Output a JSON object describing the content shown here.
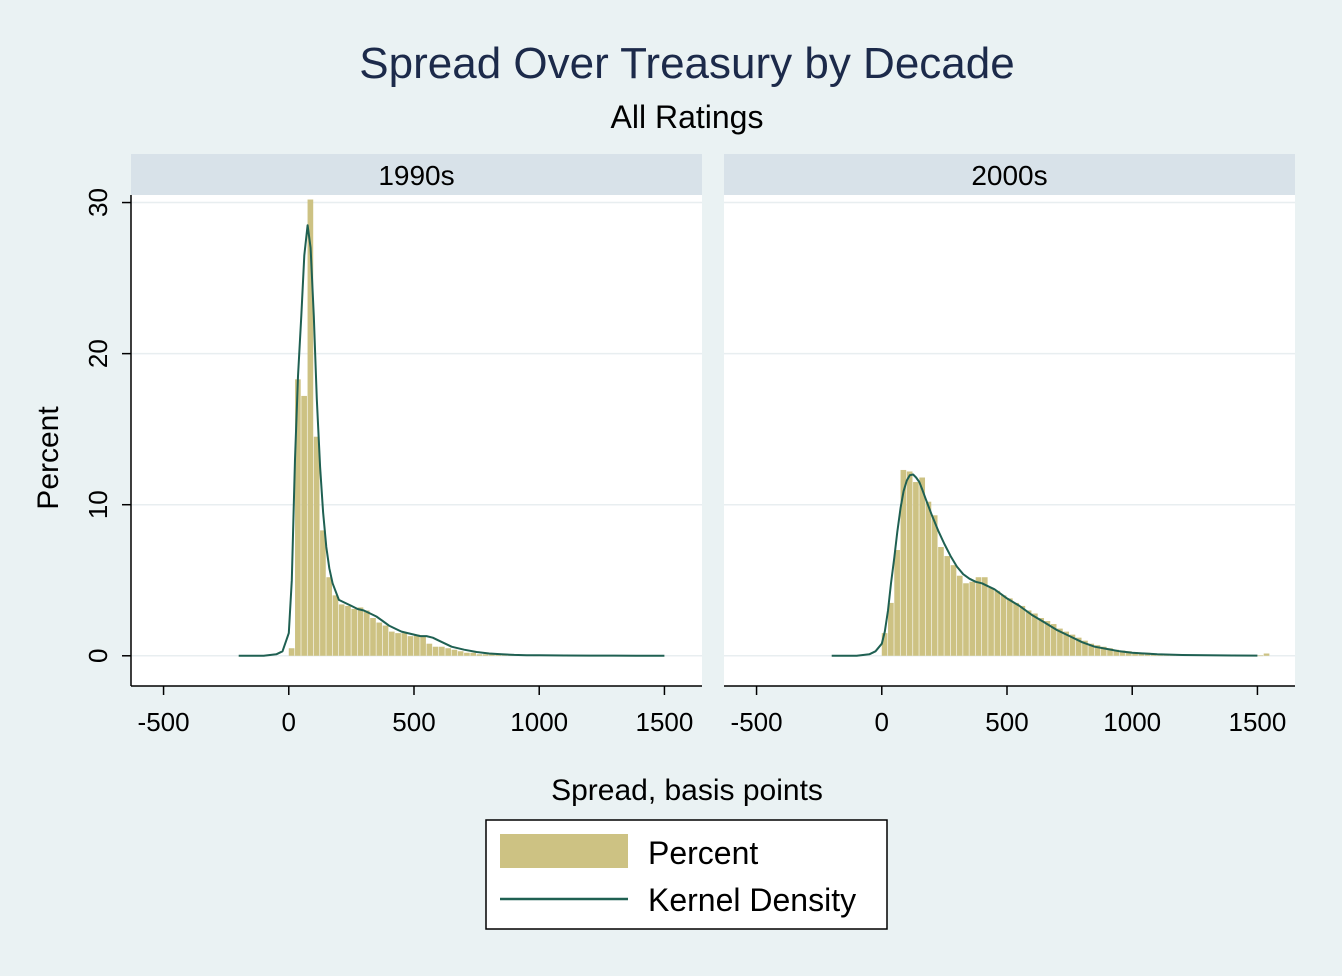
{
  "chart_data": {
    "type": "bar",
    "title": "Spread Over Treasury by Decade",
    "subtitle": "All Ratings",
    "xlabel": "Spread, basis points",
    "ylabel": "Percent",
    "xlim": [
      -630,
      1650
    ],
    "ylim": [
      -2,
      30.5
    ],
    "x_ticks": [
      -500,
      0,
      500,
      1000,
      1500
    ],
    "x_tick_labels": [
      "-500",
      "0",
      "500",
      "1000",
      "1500"
    ],
    "y_ticks": [
      0,
      10,
      20,
      30
    ],
    "y_tick_labels": [
      "0",
      "10",
      "20",
      "30"
    ],
    "grid": true,
    "bin_width": 25,
    "legend": {
      "position": "bottom",
      "entries": [
        "Percent",
        "Kernel Density"
      ]
    },
    "colors": {
      "bar": "#cdc283",
      "line": "#1f6052",
      "strip": "#d8e2e9",
      "plot_bg": "#ffffff",
      "page_bg": "#eaf2f3",
      "grid": "#e8eef0",
      "title": "#1c2a4a"
    },
    "panels": [
      {
        "label": "1990s",
        "histogram": {
          "bin_start": [
            0,
            25,
            50,
            75,
            100,
            125,
            150,
            175,
            200,
            225,
            250,
            275,
            300,
            325,
            350,
            375,
            400,
            425,
            450,
            475,
            500,
            525,
            550,
            575,
            600,
            625,
            650,
            675,
            700,
            725,
            750,
            775,
            800,
            825,
            850,
            875,
            900,
            925,
            950,
            975
          ],
          "values": [
            0.5,
            18.3,
            17.2,
            30.2,
            14.5,
            8.3,
            5.2,
            4.0,
            3.4,
            3.3,
            3.1,
            3.2,
            3.0,
            2.5,
            2.2,
            2.0,
            1.6,
            1.5,
            1.5,
            1.3,
            1.4,
            1.3,
            0.8,
            0.6,
            0.6,
            0.5,
            0.4,
            0.3,
            0.2,
            0.2,
            0.1,
            0.1,
            0.1,
            0.1,
            0.05,
            0.05,
            0.05,
            0.05,
            0.03,
            0.02
          ]
        },
        "kernel_density": {
          "x": [
            -200,
            -100,
            -50,
            -25,
            0,
            12,
            25,
            37,
            50,
            62,
            75,
            87,
            100,
            112,
            125,
            137,
            150,
            162,
            175,
            200,
            225,
            250,
            275,
            300,
            325,
            350,
            375,
            400,
            425,
            450,
            475,
            500,
            525,
            550,
            575,
            600,
            625,
            650,
            675,
            700,
            750,
            800,
            850,
            900,
            950,
            1000,
            1100,
            1200,
            1300,
            1400,
            1500
          ],
          "y": [
            0,
            0,
            0.1,
            0.3,
            1.5,
            5.0,
            13.0,
            18.5,
            22.5,
            26.5,
            28.5,
            27.0,
            22.5,
            17.0,
            12.5,
            9.5,
            7.2,
            5.8,
            4.8,
            3.7,
            3.5,
            3.3,
            3.1,
            3.0,
            2.8,
            2.6,
            2.3,
            2.0,
            1.8,
            1.6,
            1.5,
            1.4,
            1.3,
            1.3,
            1.2,
            1.0,
            0.8,
            0.6,
            0.5,
            0.4,
            0.25,
            0.15,
            0.1,
            0.06,
            0.04,
            0.03,
            0.02,
            0.01,
            0.01,
            0,
            0
          ]
        }
      },
      {
        "label": "2000s",
        "histogram": {
          "bin_start": [
            0,
            25,
            50,
            75,
            100,
            125,
            150,
            175,
            200,
            225,
            250,
            275,
            300,
            325,
            350,
            375,
            400,
            425,
            450,
            475,
            500,
            525,
            550,
            575,
            600,
            625,
            650,
            675,
            700,
            725,
            750,
            775,
            800,
            825,
            850,
            875,
            900,
            925,
            950,
            975,
            1000,
            1025,
            1050,
            1075,
            1100,
            1125,
            1150,
            1175,
            1200,
            1225,
            1250,
            1275,
            1300,
            1325,
            1350,
            1375,
            1400,
            1425,
            1450,
            1475,
            1500,
            1525
          ],
          "values": [
            1.5,
            3.5,
            7.0,
            12.3,
            12.2,
            11.5,
            11.8,
            10.2,
            9.3,
            7.2,
            6.6,
            6.0,
            5.3,
            4.8,
            4.9,
            5.2,
            5.2,
            4.5,
            4.3,
            4.0,
            3.8,
            3.5,
            3.3,
            3.0,
            2.8,
            2.5,
            2.3,
            2.1,
            1.8,
            1.6,
            1.4,
            1.2,
            1.0,
            0.8,
            0.7,
            0.6,
            0.5,
            0.4,
            0.35,
            0.3,
            0.25,
            0.2,
            0.2,
            0.15,
            0.12,
            0.1,
            0.1,
            0.08,
            0.06,
            0.05,
            0.05,
            0.04,
            0.04,
            0.03,
            0.03,
            0.03,
            0.02,
            0.02,
            0.02,
            0.02,
            0.02,
            0.15
          ]
        },
        "kernel_density": {
          "x": [
            -200,
            -100,
            -50,
            -25,
            0,
            12,
            25,
            37,
            50,
            62,
            75,
            87,
            100,
            112,
            125,
            137,
            150,
            162,
            175,
            200,
            225,
            250,
            275,
            300,
            325,
            350,
            375,
            400,
            425,
            450,
            475,
            500,
            550,
            600,
            650,
            700,
            750,
            800,
            850,
            900,
            950,
            1000,
            1050,
            1100,
            1200,
            1300,
            1400,
            1500
          ],
          "y": [
            0,
            0,
            0.1,
            0.3,
            0.8,
            1.6,
            3.0,
            4.8,
            6.5,
            8.2,
            9.8,
            10.9,
            11.6,
            11.95,
            12.0,
            11.8,
            11.5,
            11.0,
            10.4,
            9.3,
            8.3,
            7.4,
            6.6,
            5.9,
            5.4,
            5.1,
            4.9,
            4.8,
            4.6,
            4.4,
            4.1,
            3.8,
            3.3,
            2.7,
            2.2,
            1.7,
            1.3,
            0.9,
            0.6,
            0.45,
            0.3,
            0.2,
            0.15,
            0.1,
            0.05,
            0.03,
            0.02,
            0.01
          ]
        }
      }
    ]
  }
}
